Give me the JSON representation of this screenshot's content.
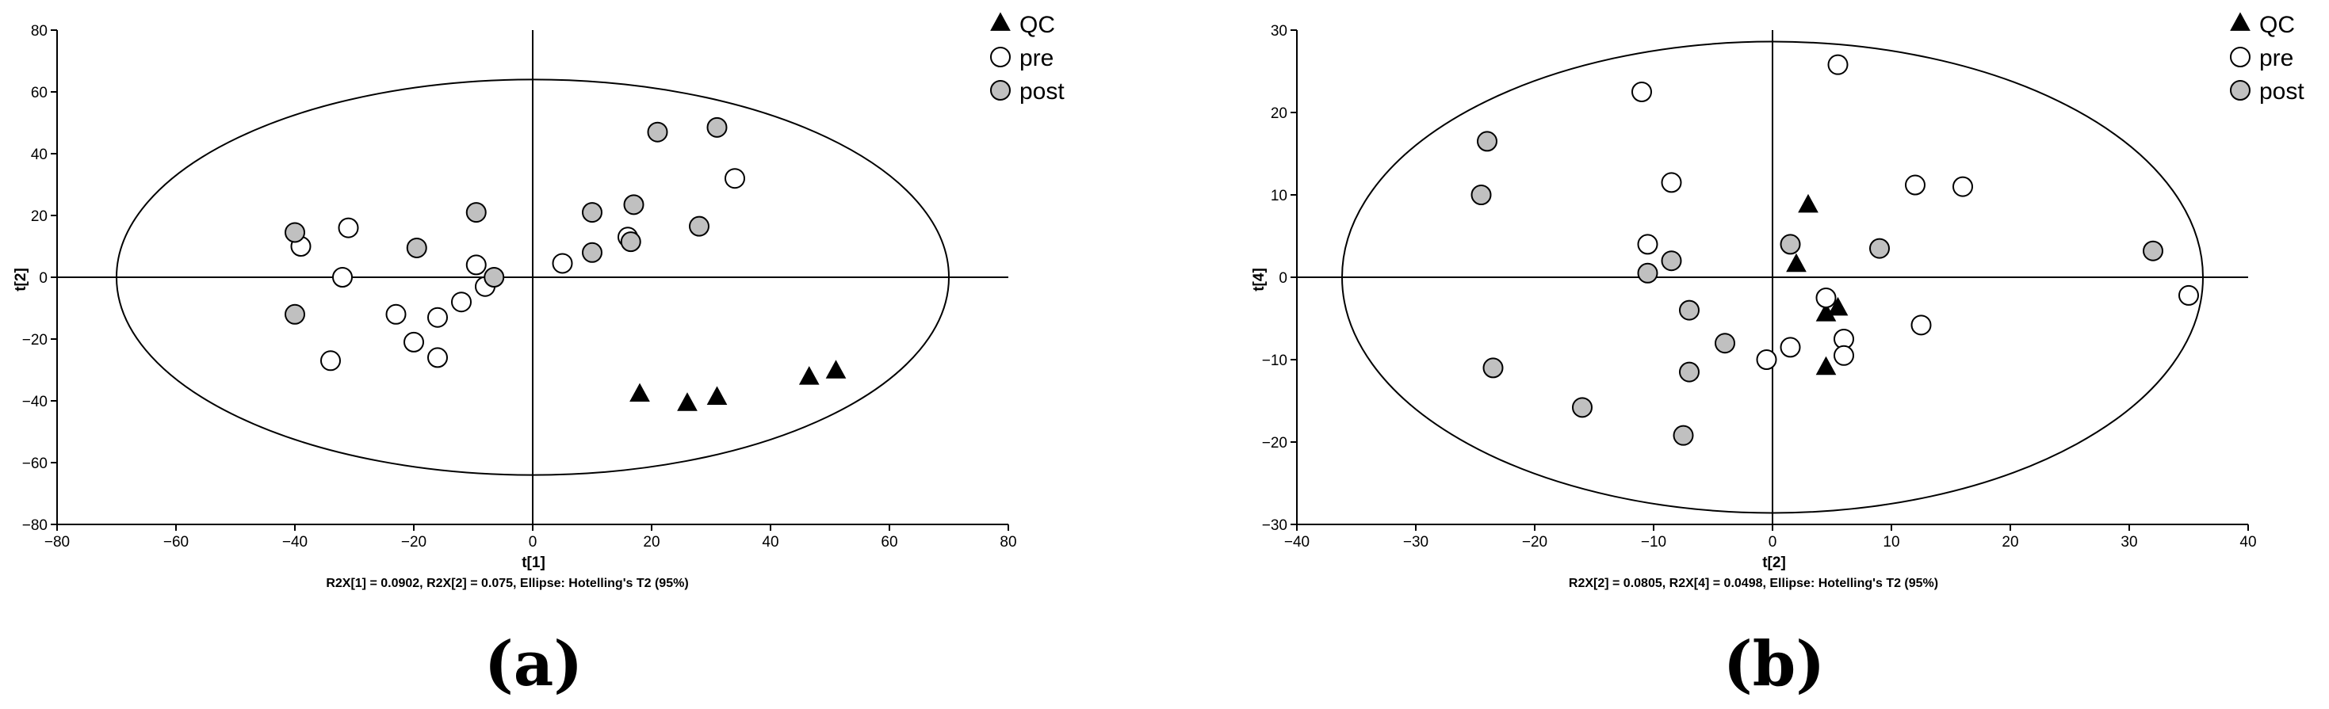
{
  "colors": {
    "qc": "#000000",
    "pre": "#ffffff",
    "post": "#c0c0c0",
    "stroke": "#000000"
  },
  "legend": [
    {
      "name": "QC",
      "marker": "triangle"
    },
    {
      "name": "pre",
      "marker": "circle-open"
    },
    {
      "name": "post",
      "marker": "circle-filled"
    }
  ],
  "chart_data": [
    {
      "type": "scatter",
      "panel_label": "(a)",
      "xlabel": "t[1]",
      "ylabel": "t[2]",
      "caption": "R2X[1] = 0.0902, R2X[2] = 0.075, Ellipse: Hotelling's T2 (95%)",
      "xlim": [
        -80,
        80
      ],
      "ylim": [
        -80,
        80
      ],
      "xticks": [
        -80,
        -60,
        -40,
        -20,
        0,
        20,
        40,
        60,
        80
      ],
      "yticks": [
        -80,
        -60,
        -40,
        -20,
        0,
        20,
        40,
        60,
        80
      ],
      "xtick_labels": [
        "−80",
        "−60",
        "−40",
        "−20",
        "0",
        "20",
        "40",
        "60",
        "80"
      ],
      "ytick_labels": [
        "−80",
        "−60",
        "−40",
        "−20",
        "0",
        "20",
        "40",
        "60",
        "80"
      ],
      "ellipse": {
        "rx": 70,
        "ry": 64
      },
      "grid": false,
      "legend_position": "top-right",
      "series": [
        {
          "name": "QC",
          "points": [
            [
              18,
              -38
            ],
            [
              26,
              -41
            ],
            [
              31,
              -39
            ],
            [
              46.5,
              -32.5
            ],
            [
              51,
              -30.5
            ]
          ]
        },
        {
          "name": "pre",
          "points": [
            [
              -39,
              10
            ],
            [
              -32,
              0
            ],
            [
              -31,
              16
            ],
            [
              -34,
              -27
            ],
            [
              -23,
              -12
            ],
            [
              -20,
              -21
            ],
            [
              -16,
              -13
            ],
            [
              -16,
              -26
            ],
            [
              -12,
              -8
            ],
            [
              -9.5,
              4
            ],
            [
              -8,
              -3
            ],
            [
              5,
              4.5
            ],
            [
              16,
              13
            ],
            [
              34,
              32
            ]
          ]
        },
        {
          "name": "post",
          "points": [
            [
              -40,
              14.5
            ],
            [
              -40,
              -12
            ],
            [
              -19.5,
              9.5
            ],
            [
              -9.5,
              21
            ],
            [
              -6.5,
              0
            ],
            [
              10,
              21
            ],
            [
              10,
              8
            ],
            [
              17,
              23.5
            ],
            [
              16.5,
              11.5
            ],
            [
              21,
              47
            ],
            [
              28,
              16.5
            ],
            [
              31,
              48.5
            ]
          ]
        }
      ]
    },
    {
      "type": "scatter",
      "panel_label": "(b)",
      "xlabel": "t[2]",
      "ylabel": "t[4]",
      "caption": "R2X[2] = 0.0805, R2X[4] = 0.0498, Ellipse: Hotelling's T2 (95%)",
      "xlim": [
        -40,
        40
      ],
      "ylim": [
        -30,
        30
      ],
      "xticks": [
        -40,
        -30,
        -20,
        -10,
        0,
        10,
        20,
        30,
        40
      ],
      "yticks": [
        -30,
        -20,
        -10,
        0,
        10,
        20,
        30
      ],
      "xtick_labels": [
        "−40",
        "−30",
        "−20",
        "−10",
        "0",
        "10",
        "20",
        "30",
        "40"
      ],
      "ytick_labels": [
        "−30",
        "−20",
        "−10",
        "0",
        "10",
        "20",
        "30"
      ],
      "ellipse": {
        "rx": 36.2,
        "ry": 28.6
      },
      "grid": false,
      "legend_position": "top-right",
      "series": [
        {
          "name": "QC",
          "points": [
            [
              3,
              8.7
            ],
            [
              2,
              1.5
            ],
            [
              4.5,
              -4.5
            ],
            [
              5.5,
              -3.8
            ],
            [
              4.5,
              -11
            ]
          ]
        },
        {
          "name": "pre",
          "points": [
            [
              -11,
              22.5
            ],
            [
              -10.5,
              4
            ],
            [
              -8.5,
              11.5
            ],
            [
              5.5,
              25.8
            ],
            [
              12,
              11.2
            ],
            [
              16,
              11
            ],
            [
              4.5,
              -2.5
            ],
            [
              6,
              -7.5
            ],
            [
              6,
              -9.5
            ],
            [
              1.5,
              -8.5
            ],
            [
              -0.5,
              -10
            ],
            [
              12.5,
              -5.8
            ],
            [
              35,
              -2.2
            ]
          ]
        },
        {
          "name": "post",
          "points": [
            [
              -24,
              16.5
            ],
            [
              -24.5,
              10
            ],
            [
              -23.5,
              -11
            ],
            [
              -16,
              -15.8
            ],
            [
              -10.5,
              0.5
            ],
            [
              -8.5,
              2
            ],
            [
              -7,
              -4
            ],
            [
              -7,
              -11.5
            ],
            [
              -4,
              -8
            ],
            [
              -7.5,
              -19.2
            ],
            [
              1.5,
              4
            ],
            [
              9,
              3.5
            ],
            [
              32,
              3.2
            ]
          ]
        }
      ]
    }
  ]
}
